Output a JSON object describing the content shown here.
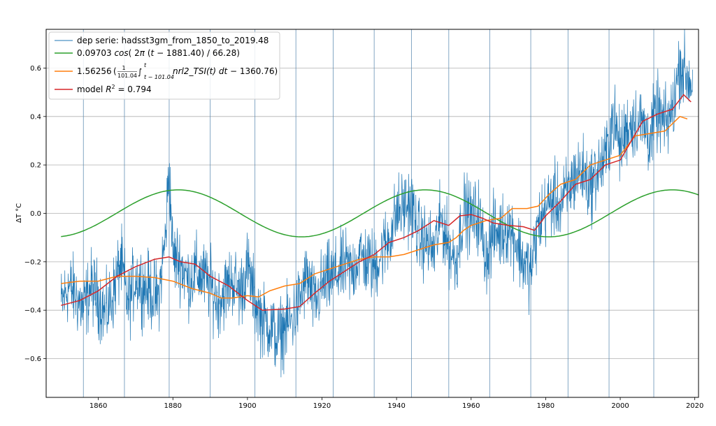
{
  "chart_data": {
    "type": "line",
    "ylabel": "ΔT °C",
    "xlim": [
      1846,
      2021
    ],
    "ylim": [
      -0.76,
      0.76
    ],
    "grid": true,
    "legend_placement": "top-left",
    "x_ticks": [
      1860,
      1880,
      1900,
      1920,
      1940,
      1960,
      1980,
      2000,
      2020
    ],
    "x_tick_labels": [
      "1860",
      "1880",
      "1900",
      "1920",
      "1940",
      "1960",
      "1980",
      "2000",
      "2020"
    ],
    "y_ticks": [
      -0.6,
      -0.4,
      -0.2,
      0.0,
      0.2,
      0.4,
      0.6
    ],
    "y_tick_labels": [
      "−0.6",
      "−0.4",
      "−0.2",
      "0.0",
      "0.2",
      "0.4",
      "0.6"
    ],
    "vertical_lines": [
      1856,
      1867,
      1879,
      1890,
      1902,
      1913,
      1923,
      1934,
      1944,
      1954,
      1965,
      1976,
      1986,
      1997,
      2009
    ],
    "colors": {
      "data": "#1f77b4",
      "cosine": "#2ca02c",
      "tsi": "#ff7f0e",
      "model": "#d62728",
      "vlines": "#5b8ab0",
      "grid": "#b0b0b0"
    },
    "legend": {
      "data": "dep serie: hadsst3gm_from_1850_to_2019.48",
      "cosine": {
        "amp": "0.09703",
        "fn": "cos",
        "open": "( 2",
        "pi": "π",
        "t": "t",
        "rest": " − 1881.40) / 66.28)"
      },
      "tsi": {
        "coef": "1.56256",
        "num": "1",
        "den": "101.04",
        "int": "∫",
        "up": "t",
        "low": "t − 101.04",
        "fn": "nrl2_TSI",
        "arg": "(t)",
        "d": " dt",
        "rest": " − 1360.76)"
      },
      "model": {
        "label": "model ",
        "r": "R",
        "sup": "2",
        "value": " = 0.794"
      }
    },
    "series": [
      {
        "name": "dep serie: hadsst3gm_from_1850_to_2019.48",
        "x": [
          1850,
          1852,
          1854,
          1856,
          1858,
          1860,
          1862,
          1864,
          1866,
          1868,
          1870,
          1872,
          1874,
          1876,
          1878,
          1879,
          1880,
          1882,
          1884,
          1886,
          1888,
          1890,
          1892,
          1894,
          1896,
          1898,
          1900,
          1902,
          1904,
          1906,
          1908,
          1910,
          1912,
          1914,
          1916,
          1918,
          1920,
          1922,
          1924,
          1926,
          1928,
          1930,
          1932,
          1934,
          1936,
          1938,
          1940,
          1942,
          1944,
          1946,
          1948,
          1950,
          1952,
          1954,
          1956,
          1958,
          1960,
          1962,
          1964,
          1966,
          1968,
          1970,
          1972,
          1974,
          1976,
          1978,
          1980,
          1982,
          1984,
          1986,
          1988,
          1990,
          1992,
          1994,
          1996,
          1998,
          2000,
          2002,
          2004,
          2006,
          2008,
          2010,
          2012,
          2014,
          2016,
          2018,
          2019.48
        ],
        "y": [
          -0.38,
          -0.3,
          -0.34,
          -0.4,
          -0.3,
          -0.35,
          -0.42,
          -0.33,
          -0.2,
          -0.38,
          -0.26,
          -0.3,
          -0.32,
          -0.36,
          -0.1,
          0.2,
          -0.18,
          -0.2,
          -0.28,
          -0.24,
          -0.26,
          -0.3,
          -0.36,
          -0.32,
          -0.27,
          -0.33,
          -0.22,
          -0.36,
          -0.44,
          -0.46,
          -0.52,
          -0.47,
          -0.44,
          -0.36,
          -0.26,
          -0.38,
          -0.3,
          -0.27,
          -0.25,
          -0.22,
          -0.24,
          -0.17,
          -0.2,
          -0.22,
          -0.16,
          -0.1,
          0.0,
          0.03,
          0.04,
          -0.1,
          -0.12,
          -0.16,
          -0.02,
          -0.14,
          -0.2,
          0.02,
          -0.02,
          -0.01,
          -0.18,
          -0.08,
          -0.08,
          -0.05,
          -0.11,
          -0.2,
          -0.24,
          -0.05,
          0.02,
          0.06,
          0.03,
          0.09,
          0.16,
          0.17,
          0.11,
          0.18,
          0.22,
          0.4,
          0.27,
          0.36,
          0.38,
          0.37,
          0.31,
          0.42,
          0.36,
          0.42,
          0.62,
          0.56,
          0.54
        ]
      },
      {
        "name": "0.09703 cos( 2π (t − 1881.40) / 66.28)",
        "amplitude": 0.09703,
        "phase_year": 1881.4,
        "period": 66.28,
        "x_range": [
          1850,
          2021
        ]
      },
      {
        "name": "1.56256 (1/101.04 ∫ nrl2_TSI(t) dt − 1360.76)",
        "x": [
          1850,
          1855,
          1860,
          1865,
          1870,
          1875,
          1880,
          1885,
          1890,
          1893,
          1896,
          1900,
          1903,
          1906,
          1910,
          1914,
          1918,
          1922,
          1926,
          1930,
          1934,
          1938,
          1942,
          1946,
          1950,
          1954,
          1956,
          1958,
          1960,
          1964,
          1968,
          1971,
          1975,
          1978,
          1981,
          1984,
          1988,
          1992,
          1996,
          2000,
          2004,
          2008,
          2012,
          2016,
          2018
        ],
        "y": [
          -0.29,
          -0.28,
          -0.28,
          -0.26,
          -0.26,
          -0.265,
          -0.28,
          -0.31,
          -0.33,
          -0.35,
          -0.35,
          -0.34,
          -0.345,
          -0.32,
          -0.3,
          -0.29,
          -0.25,
          -0.23,
          -0.21,
          -0.19,
          -0.18,
          -0.18,
          -0.17,
          -0.15,
          -0.13,
          -0.12,
          -0.1,
          -0.07,
          -0.05,
          -0.03,
          -0.02,
          0.02,
          0.02,
          0.03,
          0.08,
          0.12,
          0.14,
          0.2,
          0.22,
          0.24,
          0.32,
          0.33,
          0.34,
          0.4,
          0.39
        ]
      },
      {
        "name": "model R² = 0.794",
        "x": [
          1850,
          1855,
          1860,
          1865,
          1870,
          1875,
          1879,
          1882,
          1886,
          1890,
          1895,
          1900,
          1904,
          1910,
          1914,
          1918,
          1922,
          1926,
          1930,
          1934,
          1938,
          1942,
          1946,
          1950,
          1954,
          1957,
          1960,
          1963,
          1966,
          1970,
          1974,
          1977,
          1980,
          1984,
          1988,
          1992,
          1996,
          2000,
          2003,
          2006,
          2010,
          2014,
          2017,
          2019
        ],
        "y": [
          -0.38,
          -0.36,
          -0.32,
          -0.26,
          -0.22,
          -0.19,
          -0.18,
          -0.2,
          -0.21,
          -0.26,
          -0.3,
          -0.36,
          -0.4,
          -0.395,
          -0.385,
          -0.33,
          -0.28,
          -0.24,
          -0.2,
          -0.17,
          -0.12,
          -0.1,
          -0.07,
          -0.03,
          -0.05,
          -0.01,
          -0.005,
          -0.02,
          -0.04,
          -0.05,
          -0.055,
          -0.07,
          -0.01,
          0.05,
          0.12,
          0.14,
          0.2,
          0.22,
          0.3,
          0.38,
          0.41,
          0.43,
          0.49,
          0.46
        ]
      }
    ]
  }
}
